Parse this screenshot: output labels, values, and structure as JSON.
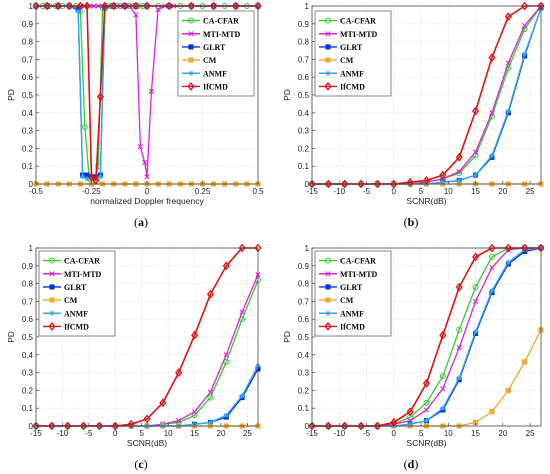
{
  "chart_data": [
    {
      "type": "line",
      "panel_label": "(a)",
      "xlabel": "normalized Doppler frequency",
      "ylabel": "PD",
      "xlim": [
        -0.5,
        0.5
      ],
      "ylim": [
        0,
        1
      ],
      "xticks": [
        -0.5,
        -0.25,
        0,
        0.25,
        0.5
      ],
      "xtick_labels": [
        "-0.5",
        "-0.25",
        "0",
        "0.25",
        "0.5"
      ],
      "yticks": [
        0,
        0.1,
        0.2,
        0.3,
        0.4,
        0.5,
        0.6,
        0.7,
        0.8,
        0.9,
        1
      ],
      "ytick_labels": [
        "0",
        "0.1",
        "0.2",
        "0.3",
        "0.4",
        "0.5",
        "0.6",
        "0.7",
        "0.8",
        "0.9",
        "1"
      ],
      "grid": true,
      "legend_position": "top-right",
      "series": [
        {
          "name": "CA-CFAR",
          "color": "#33cc33",
          "marker": "circle",
          "x": [
            -0.5,
            -0.47,
            -0.44,
            -0.41,
            -0.38,
            -0.35,
            -0.32,
            -0.3,
            -0.28,
            -0.26,
            -0.24,
            -0.22,
            -0.2,
            -0.18,
            -0.16,
            -0.14,
            -0.12,
            -0.1,
            -0.08,
            -0.06,
            -0.04,
            -0.02,
            0,
            0.05,
            0.1,
            0.15,
            0.2,
            0.25,
            0.3,
            0.35,
            0.4,
            0.45,
            0.5
          ],
          "y": [
            1,
            1,
            1,
            1,
            1,
            1,
            1,
            0.97,
            0.32,
            0.03,
            0.02,
            0.1,
            0.99,
            1,
            1,
            1,
            1,
            1,
            1,
            1,
            1,
            1,
            1,
            1,
            1,
            1,
            1,
            1,
            1,
            1,
            1,
            1,
            1
          ]
        },
        {
          "name": "MTI-MTD",
          "color": "#dd22dd",
          "marker": "cross",
          "x": [
            -0.5,
            -0.45,
            -0.4,
            -0.35,
            -0.3,
            -0.28,
            -0.26,
            -0.24,
            -0.22,
            -0.2,
            -0.16,
            -0.12,
            -0.08,
            -0.05,
            -0.03,
            -0.01,
            0.0,
            0.02,
            0.05,
            0.08,
            0.12,
            0.2,
            0.3,
            0.4,
            0.5
          ],
          "y": [
            1,
            1,
            1,
            1,
            1,
            1,
            1,
            1,
            1,
            1,
            1,
            1,
            1,
            0.95,
            0.21,
            0.12,
            0.04,
            0.52,
            0.98,
            1,
            1,
            1,
            1,
            1,
            1
          ]
        },
        {
          "name": "GLRT",
          "color": "#0033dd",
          "marker": "square",
          "x": [
            -0.5,
            -0.45,
            -0.4,
            -0.35,
            -0.31,
            -0.29,
            -0.27,
            -0.25,
            -0.23,
            -0.21,
            -0.19,
            -0.15,
            -0.1,
            -0.05,
            0,
            0.1,
            0.2,
            0.3,
            0.4,
            0.5
          ],
          "y": [
            1,
            1,
            1,
            1,
            0.98,
            0.05,
            0.05,
            0.04,
            0.04,
            0.05,
            0.99,
            1,
            1,
            1,
            1,
            1,
            1,
            1,
            1,
            1
          ]
        },
        {
          "name": "CM",
          "color": "#f0a830",
          "marker": "square",
          "x": [
            -0.5,
            -0.45,
            -0.4,
            -0.35,
            -0.3,
            -0.25,
            -0.2,
            -0.15,
            -0.1,
            -0.05,
            0,
            0.05,
            0.1,
            0.15,
            0.2,
            0.25,
            0.3,
            0.35,
            0.4,
            0.45,
            0.5
          ],
          "y": [
            0,
            0,
            0,
            0,
            0,
            0,
            0,
            0,
            0,
            0,
            0,
            0,
            0,
            0,
            0,
            0,
            0,
            0,
            0,
            0,
            0
          ]
        },
        {
          "name": "ANMF",
          "color": "#33aaee",
          "marker": "star",
          "x": [
            -0.5,
            -0.45,
            -0.4,
            -0.35,
            -0.31,
            -0.29,
            -0.27,
            -0.25,
            -0.23,
            -0.21,
            -0.19,
            -0.15,
            -0.1,
            -0.05,
            0,
            0.1,
            0.2,
            0.3,
            0.4,
            0.5
          ],
          "y": [
            1,
            1,
            1,
            1,
            0.97,
            0.04,
            0.03,
            0.03,
            0.03,
            0.04,
            0.98,
            1,
            1,
            1,
            1,
            1,
            1,
            1,
            1,
            1
          ]
        },
        {
          "name": "IfCMD",
          "color": "#dd1111",
          "marker": "diamond",
          "x": [
            -0.5,
            -0.45,
            -0.4,
            -0.35,
            -0.3,
            -0.27,
            -0.25,
            -0.23,
            -0.21,
            -0.19,
            -0.15,
            -0.1,
            -0.05,
            0,
            0.1,
            0.2,
            0.3,
            0.4,
            0.5
          ],
          "y": [
            1,
            1,
            1,
            1,
            1,
            1,
            0.04,
            0.02,
            0.49,
            1,
            1,
            1,
            1,
            1,
            1,
            1,
            1,
            1,
            1
          ]
        }
      ]
    },
    {
      "type": "line",
      "panel_label": "(b)",
      "xlabel": "SCNR(dB)",
      "ylabel": "PD",
      "xlim": [
        -15,
        27
      ],
      "ylim": [
        0,
        1
      ],
      "xticks": [
        -15,
        -10,
        -5,
        0,
        5,
        10,
        15,
        20,
        25
      ],
      "xtick_labels": [
        "-15",
        "-10",
        "-5",
        "0",
        "5",
        "10",
        "15",
        "20",
        "25"
      ],
      "yticks": [
        0,
        0.1,
        0.2,
        0.3,
        0.4,
        0.5,
        0.6,
        0.7,
        0.8,
        0.9,
        1
      ],
      "ytick_labels": [
        "0",
        "0.1",
        "0.2",
        "0.3",
        "0.4",
        "0.5",
        "0.6",
        "0.7",
        "0.8",
        "0.9",
        "1"
      ],
      "grid": true,
      "legend_position": "top-left",
      "x": [
        -15,
        -12,
        -9,
        -6,
        -3,
        0,
        3,
        6,
        9,
        12,
        15,
        18,
        21,
        24,
        27
      ],
      "series": [
        {
          "name": "CA-CFAR",
          "color": "#33cc33",
          "marker": "circle",
          "y": [
            0,
            0,
            0,
            0,
            0,
            0,
            0,
            0.01,
            0.03,
            0.06,
            0.16,
            0.38,
            0.65,
            0.87,
            1.0
          ]
        },
        {
          "name": "MTI-MTD",
          "color": "#dd22dd",
          "marker": "cross",
          "y": [
            0,
            0,
            0,
            0,
            0,
            0,
            0,
            0.01,
            0.03,
            0.07,
            0.18,
            0.4,
            0.68,
            0.89,
            1.0
          ]
        },
        {
          "name": "GLRT",
          "color": "#0033dd",
          "marker": "square",
          "y": [
            0,
            0,
            0,
            0,
            0,
            0,
            0,
            0,
            0.01,
            0.02,
            0.05,
            0.15,
            0.4,
            0.72,
            0.99
          ]
        },
        {
          "name": "CM",
          "color": "#f0a830",
          "marker": "square",
          "y": [
            0,
            0,
            0,
            0,
            0,
            0,
            0,
            0,
            0,
            0,
            0,
            0,
            0,
            0,
            0
          ]
        },
        {
          "name": "ANMF",
          "color": "#33aaee",
          "marker": "star",
          "y": [
            0,
            0,
            0,
            0,
            0,
            0,
            0,
            0,
            0.01,
            0.02,
            0.05,
            0.16,
            0.41,
            0.73,
            0.99
          ]
        },
        {
          "name": "IfCMD",
          "color": "#dd1111",
          "marker": "diamond",
          "y": [
            0,
            0,
            0,
            0,
            0,
            0,
            0.01,
            0.02,
            0.05,
            0.15,
            0.41,
            0.71,
            0.94,
            1.0,
            1.0
          ]
        }
      ]
    },
    {
      "type": "line",
      "panel_label": "(c)",
      "xlabel": "SCNR(dB)",
      "ylabel": "PD",
      "xlim": [
        -15,
        27
      ],
      "ylim": [
        0,
        1
      ],
      "xticks": [
        -15,
        -10,
        -5,
        0,
        5,
        10,
        15,
        20,
        25
      ],
      "xtick_labels": [
        "-15",
        "-10",
        "-5",
        "0",
        "5",
        "10",
        "15",
        "20",
        "25"
      ],
      "yticks": [
        0,
        0.1,
        0.2,
        0.3,
        0.4,
        0.5,
        0.6,
        0.7,
        0.8,
        0.9,
        1
      ],
      "ytick_labels": [
        "0",
        "0.1",
        "0.2",
        "0.3",
        "0.4",
        "0.5",
        "0.6",
        "0.7",
        "0.8",
        "0.9",
        "1"
      ],
      "grid": true,
      "legend_position": "top-left",
      "x": [
        -15,
        -12,
        -9,
        -6,
        -3,
        0,
        3,
        6,
        9,
        12,
        15,
        18,
        21,
        24,
        27
      ],
      "series": [
        {
          "name": "CA-CFAR",
          "color": "#33cc33",
          "marker": "circle",
          "y": [
            0,
            0,
            0,
            0,
            0,
            0,
            0,
            0,
            0.01,
            0.02,
            0.06,
            0.16,
            0.36,
            0.6,
            0.82
          ]
        },
        {
          "name": "MTI-MTD",
          "color": "#dd22dd",
          "marker": "cross",
          "y": [
            0,
            0,
            0,
            0,
            0,
            0,
            0,
            0,
            0.01,
            0.03,
            0.08,
            0.19,
            0.4,
            0.64,
            0.85
          ]
        },
        {
          "name": "GLRT",
          "color": "#0033dd",
          "marker": "square",
          "y": [
            0,
            0,
            0,
            0,
            0,
            0,
            0,
            0,
            0,
            0,
            0.01,
            0.02,
            0.05,
            0.16,
            0.32
          ]
        },
        {
          "name": "CM",
          "color": "#f0a830",
          "marker": "square",
          "y": [
            0,
            0,
            0,
            0,
            0,
            0,
            0,
            0,
            0,
            0,
            0,
            0,
            0,
            0,
            0
          ]
        },
        {
          "name": "ANMF",
          "color": "#33aaee",
          "marker": "star",
          "y": [
            0,
            0,
            0,
            0,
            0,
            0,
            0,
            0,
            0,
            0,
            0.01,
            0.02,
            0.06,
            0.17,
            0.34
          ]
        },
        {
          "name": "IfCMD",
          "color": "#dd1111",
          "marker": "diamond",
          "y": [
            0,
            0,
            0,
            0,
            0,
            0,
            0.01,
            0.04,
            0.13,
            0.3,
            0.51,
            0.74,
            0.9,
            1.0,
            1.0
          ]
        }
      ]
    },
    {
      "type": "line",
      "panel_label": "(d)",
      "xlabel": "SCNR(dB)",
      "ylabel": "PD",
      "xlim": [
        -15,
        27
      ],
      "ylim": [
        0,
        1
      ],
      "xticks": [
        -15,
        -10,
        -5,
        0,
        5,
        10,
        15,
        20,
        25
      ],
      "xtick_labels": [
        "-15",
        "-10",
        "-5",
        "0",
        "5",
        "10",
        "15",
        "20",
        "25"
      ],
      "yticks": [
        0,
        0.1,
        0.2,
        0.3,
        0.4,
        0.5,
        0.6,
        0.7,
        0.8,
        0.9,
        1
      ],
      "ytick_labels": [
        "0",
        "0.1",
        "0.2",
        "0.3",
        "0.4",
        "0.5",
        "0.6",
        "0.7",
        "0.8",
        "0.9",
        "1"
      ],
      "grid": true,
      "legend_position": "top-left",
      "x": [
        -15,
        -12,
        -9,
        -6,
        -3,
        0,
        3,
        6,
        9,
        12,
        15,
        18,
        21,
        24,
        27
      ],
      "series": [
        {
          "name": "CA-CFAR",
          "color": "#33cc33",
          "marker": "circle",
          "y": [
            0,
            0,
            0,
            0,
            0,
            0.01,
            0.05,
            0.13,
            0.28,
            0.54,
            0.78,
            0.95,
            1.0,
            1.0,
            1.0
          ]
        },
        {
          "name": "MTI-MTD",
          "color": "#dd22dd",
          "marker": "cross",
          "y": [
            0,
            0,
            0,
            0,
            0,
            0.01,
            0.03,
            0.09,
            0.21,
            0.44,
            0.7,
            0.89,
            0.99,
            1.0,
            1.0
          ]
        },
        {
          "name": "GLRT",
          "color": "#0033dd",
          "marker": "square",
          "y": [
            0,
            0,
            0,
            0,
            0,
            0,
            0.01,
            0.03,
            0.09,
            0.26,
            0.52,
            0.75,
            0.91,
            0.98,
            1.0
          ]
        },
        {
          "name": "CM",
          "color": "#f0a830",
          "marker": "square",
          "y": [
            0,
            0,
            0,
            0,
            0,
            0,
            0,
            0,
            0,
            0,
            0.02,
            0.08,
            0.2,
            0.36,
            0.54
          ]
        },
        {
          "name": "ANMF",
          "color": "#33aaee",
          "marker": "star",
          "y": [
            0,
            0,
            0,
            0,
            0,
            0,
            0.01,
            0.03,
            0.1,
            0.27,
            0.53,
            0.76,
            0.92,
            0.99,
            1.0
          ]
        },
        {
          "name": "IfCMD",
          "color": "#dd1111",
          "marker": "diamond",
          "y": [
            0,
            0,
            0,
            0,
            0,
            0.02,
            0.08,
            0.24,
            0.51,
            0.78,
            0.95,
            1.0,
            1.0,
            1.0,
            1.0
          ]
        }
      ]
    }
  ]
}
